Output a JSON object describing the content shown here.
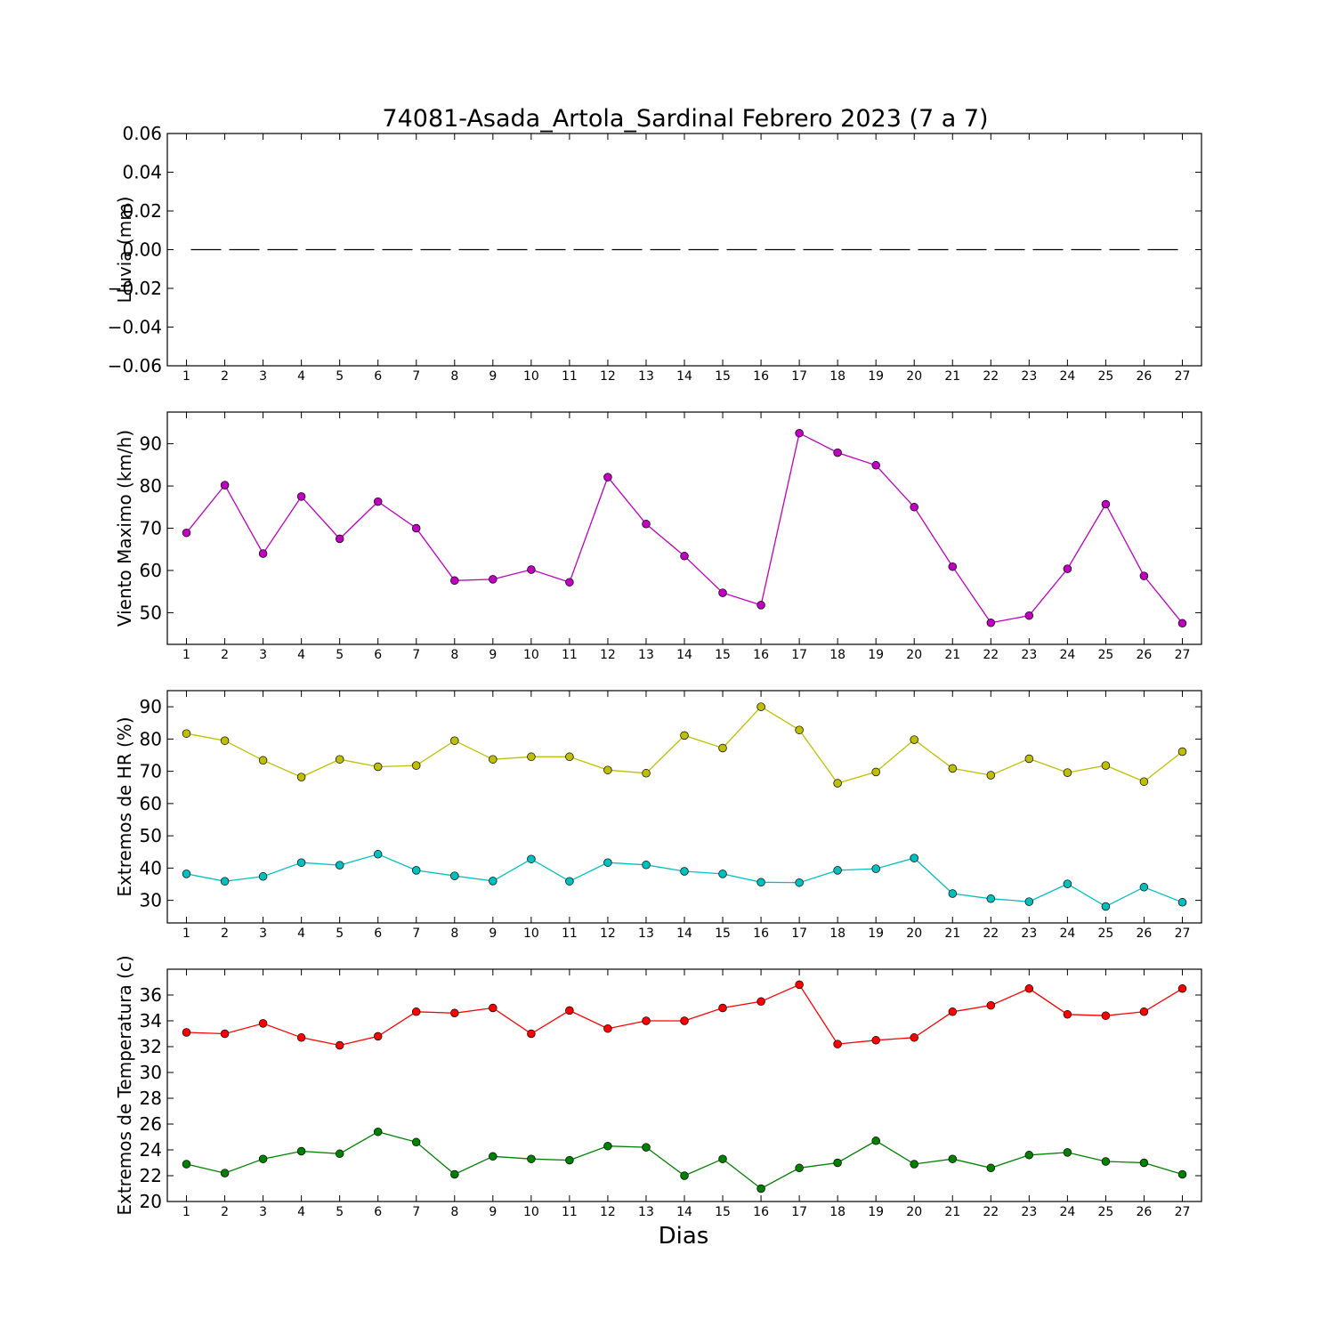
{
  "title": "74081-Asada_Artola_Sardinal Febrero 2023  (7 a 7)",
  "xlabel": "Dias",
  "chart_data": [
    {
      "type": "line",
      "ylabel": "Lluvia (mm)",
      "x": [
        1,
        2,
        3,
        4,
        5,
        6,
        7,
        8,
        9,
        10,
        11,
        12,
        13,
        14,
        15,
        16,
        17,
        18,
        19,
        20,
        21,
        22,
        23,
        24,
        25,
        26,
        27
      ],
      "xlim": [
        0.5,
        27.5
      ],
      "ylim": [
        -0.06,
        0.06
      ],
      "yticks": [
        -0.06,
        -0.04,
        -0.02,
        0.0,
        0.02,
        0.04,
        0.06
      ],
      "ytick_labels": [
        "−0.06",
        "−0.04",
        "−0.02",
        "0.00",
        "0.02",
        "0.04",
        "0.06"
      ],
      "series": [
        {
          "color": "#000000",
          "dashed": true,
          "markers": false,
          "values": [
            0,
            0,
            0,
            0,
            0,
            0,
            0,
            0,
            0,
            0,
            0,
            0,
            0,
            0,
            0,
            0,
            0,
            0,
            0,
            0,
            0,
            0,
            0,
            0,
            0,
            0,
            0
          ]
        }
      ]
    },
    {
      "type": "line",
      "ylabel": "Viento Maximo (km/h)",
      "x": [
        1,
        2,
        3,
        4,
        5,
        6,
        7,
        8,
        9,
        10,
        11,
        12,
        13,
        14,
        15,
        16,
        17,
        18,
        19,
        20,
        21,
        22,
        23,
        24,
        25,
        26,
        27
      ],
      "xlim": [
        0.5,
        27.5
      ],
      "ylim": [
        42.5,
        97.5
      ],
      "yticks": [
        50,
        60,
        70,
        80,
        90
      ],
      "ytick_labels": [
        "50",
        "60",
        "70",
        "80",
        "90"
      ],
      "series": [
        {
          "color": "#bf00bf",
          "markers": true,
          "values": [
            68.9,
            80.2,
            64.0,
            77.5,
            67.5,
            76.3,
            70.0,
            57.6,
            57.9,
            60.2,
            57.2,
            82.1,
            71.0,
            63.4,
            54.7,
            51.8,
            92.5,
            87.9,
            84.9,
            75.0,
            60.9,
            47.6,
            49.3,
            60.4,
            75.7,
            58.7,
            47.5
          ]
        }
      ]
    },
    {
      "type": "line",
      "ylabel": "Extremos de HR (%)",
      "x": [
        1,
        2,
        3,
        4,
        5,
        6,
        7,
        8,
        9,
        10,
        11,
        12,
        13,
        14,
        15,
        16,
        17,
        18,
        19,
        20,
        21,
        22,
        23,
        24,
        25,
        26,
        27
      ],
      "xlim": [
        0.5,
        27.5
      ],
      "ylim": [
        23,
        95
      ],
      "yticks": [
        30,
        40,
        50,
        60,
        70,
        80,
        90
      ],
      "ytick_labels": [
        "30",
        "40",
        "50",
        "60",
        "70",
        "80",
        "90"
      ],
      "series": [
        {
          "color": "#bfbf00",
          "markers": true,
          "values": [
            81.7,
            79.5,
            73.4,
            68.2,
            73.7,
            71.4,
            71.8,
            79.5,
            73.7,
            74.5,
            74.5,
            70.4,
            69.4,
            81.1,
            77.2,
            90.0,
            82.8,
            66.3,
            69.8,
            79.8,
            70.9,
            68.8,
            73.9,
            69.6,
            71.8,
            66.8,
            76.1
          ]
        },
        {
          "color": "#00bfbf",
          "markers": true,
          "values": [
            38.2,
            35.9,
            37.4,
            41.7,
            40.9,
            44.3,
            39.3,
            37.6,
            36.0,
            42.8,
            35.9,
            41.7,
            41.0,
            39.0,
            38.2,
            35.6,
            35.5,
            39.3,
            39.8,
            43.1,
            32.1,
            30.5,
            29.6,
            35.1,
            28.1,
            34.1,
            29.4
          ]
        }
      ]
    },
    {
      "type": "line",
      "ylabel": "Extremos de Temperatura (c)",
      "x": [
        1,
        2,
        3,
        4,
        5,
        6,
        7,
        8,
        9,
        10,
        11,
        12,
        13,
        14,
        15,
        16,
        17,
        18,
        19,
        20,
        21,
        22,
        23,
        24,
        25,
        26,
        27
      ],
      "xlim": [
        0.5,
        27.5
      ],
      "ylim": [
        20,
        38
      ],
      "yticks": [
        20,
        22,
        24,
        26,
        28,
        30,
        32,
        34,
        36
      ],
      "ytick_labels": [
        "20",
        "22",
        "24",
        "26",
        "28",
        "30",
        "32",
        "34",
        "36"
      ],
      "series": [
        {
          "color": "#ff0000",
          "markers": true,
          "values": [
            33.1,
            33.0,
            33.8,
            32.7,
            32.1,
            32.8,
            34.7,
            34.6,
            35.0,
            33.0,
            34.8,
            33.4,
            34.0,
            34.0,
            35.0,
            35.5,
            36.8,
            32.2,
            32.5,
            32.7,
            34.7,
            35.2,
            36.5,
            34.5,
            34.4,
            34.7,
            36.5
          ]
        },
        {
          "color": "#008000",
          "markers": true,
          "values": [
            22.9,
            22.2,
            23.3,
            23.9,
            23.7,
            25.4,
            24.6,
            22.1,
            23.5,
            23.3,
            23.2,
            24.3,
            24.2,
            22.0,
            23.3,
            21.0,
            22.6,
            23.0,
            24.7,
            22.9,
            23.3,
            22.6,
            23.6,
            23.8,
            23.1,
            23.0,
            22.1
          ]
        }
      ]
    }
  ]
}
